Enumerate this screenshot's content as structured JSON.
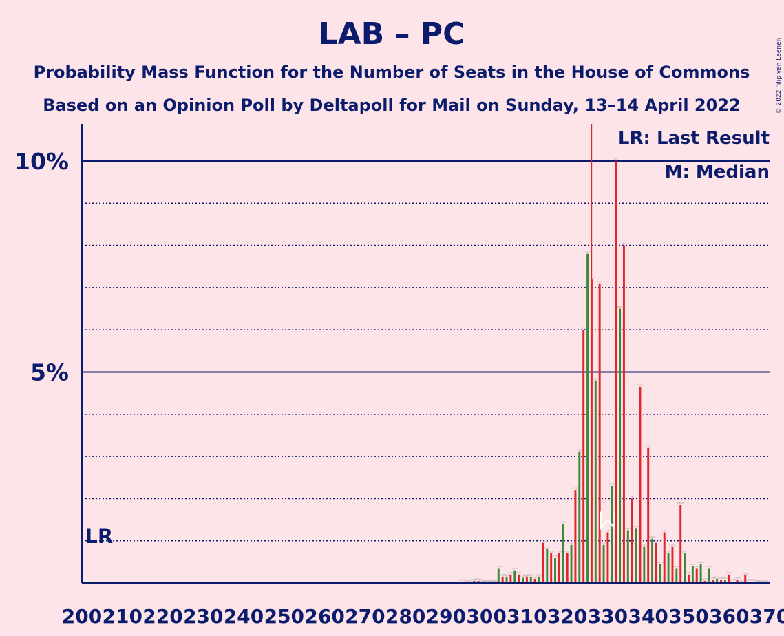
{
  "chart_data": {
    "type": "bar",
    "title": "LAB – PC",
    "subtitle_1": "Probability Mass Function for the Number of Seats in the House of Commons",
    "subtitle_2": "Based on an Opinion Poll by Deltapoll for Mail on Sunday, 13–14 April 2022",
    "ylabel": "",
    "xlabel": "",
    "xlim": [
      200,
      370
    ],
    "ylim": [
      0,
      10.8
    ],
    "y_ticks_major": [
      5,
      10
    ],
    "y_tick_labels": [
      "5%",
      "10%"
    ],
    "y_gridlines_minor": [
      1,
      2,
      3,
      4,
      6,
      7,
      8,
      9
    ],
    "x_ticks": [
      200,
      210,
      220,
      230,
      240,
      250,
      260,
      270,
      280,
      290,
      300,
      310,
      320,
      330,
      340,
      350,
      360,
      370
    ],
    "last_result": 202,
    "last_result_label": "LR",
    "median": 330,
    "median_label": "M",
    "legend": [
      "LR: Last Result",
      "M: Median"
    ],
    "legend_position": "top-right",
    "series_colors": {
      "red": "#e0262b",
      "green": "#3a8a3a",
      "line": "#0c1c6c",
      "threshold": "#e0262b"
    },
    "majority_line": 326,
    "values": [
      {
        "x": 294,
        "v": 0.03
      },
      {
        "x": 295,
        "v": 0.02
      },
      {
        "x": 296,
        "v": 0.02
      },
      {
        "x": 297,
        "v": 0.05
      },
      {
        "x": 298,
        "v": 0.05
      },
      {
        "x": 299,
        "v": 0.01
      },
      {
        "x": 300,
        "v": 0.01
      },
      {
        "x": 301,
        "v": 0.01
      },
      {
        "x": 302,
        "v": 0.01
      },
      {
        "x": 303,
        "v": 0.35
      },
      {
        "x": 304,
        "v": 0.15
      },
      {
        "x": 305,
        "v": 0.15
      },
      {
        "x": 306,
        "v": 0.2
      },
      {
        "x": 307,
        "v": 0.3
      },
      {
        "x": 308,
        "v": 0.2
      },
      {
        "x": 309,
        "v": 0.12
      },
      {
        "x": 310,
        "v": 0.15
      },
      {
        "x": 311,
        "v": 0.15
      },
      {
        "x": 312,
        "v": 0.1
      },
      {
        "x": 313,
        "v": 0.15
      },
      {
        "x": 314,
        "v": 0.95
      },
      {
        "x": 315,
        "v": 0.8
      },
      {
        "x": 316,
        "v": 0.7
      },
      {
        "x": 317,
        "v": 0.6
      },
      {
        "x": 318,
        "v": 0.7
      },
      {
        "x": 319,
        "v": 1.4
      },
      {
        "x": 320,
        "v": 0.7
      },
      {
        "x": 321,
        "v": 0.9
      },
      {
        "x": 322,
        "v": 2.2
      },
      {
        "x": 323,
        "v": 3.1
      },
      {
        "x": 324,
        "v": 6.0
      },
      {
        "x": 325,
        "v": 7.8
      },
      {
        "x": 326,
        "v": 7.2
      },
      {
        "x": 327,
        "v": 4.8
      },
      {
        "x": 328,
        "v": 7.1
      },
      {
        "x": 329,
        "v": 0.9
      },
      {
        "x": 330,
        "v": 1.2
      },
      {
        "x": 331,
        "v": 2.3
      },
      {
        "x": 332,
        "v": 10.0
      },
      {
        "x": 333,
        "v": 6.5
      },
      {
        "x": 334,
        "v": 8.0
      },
      {
        "x": 335,
        "v": 1.25
      },
      {
        "x": 336,
        "v": 2.0
      },
      {
        "x": 337,
        "v": 1.3
      },
      {
        "x": 338,
        "v": 4.65
      },
      {
        "x": 339,
        "v": 0.85
      },
      {
        "x": 340,
        "v": 3.2
      },
      {
        "x": 341,
        "v": 1.05
      },
      {
        "x": 342,
        "v": 0.95
      },
      {
        "x": 343,
        "v": 0.45
      },
      {
        "x": 344,
        "v": 1.2
      },
      {
        "x": 345,
        "v": 0.7
      },
      {
        "x": 346,
        "v": 0.85
      },
      {
        "x": 347,
        "v": 0.35
      },
      {
        "x": 348,
        "v": 1.85
      },
      {
        "x": 349,
        "v": 0.7
      },
      {
        "x": 350,
        "v": 0.2
      },
      {
        "x": 351,
        "v": 0.4
      },
      {
        "x": 352,
        "v": 0.35
      },
      {
        "x": 353,
        "v": 0.45
      },
      {
        "x": 354,
        "v": 0.05
      },
      {
        "x": 355,
        "v": 0.35
      },
      {
        "x": 356,
        "v": 0.08
      },
      {
        "x": 357,
        "v": 0.1
      },
      {
        "x": 358,
        "v": 0.08
      },
      {
        "x": 359,
        "v": 0.08
      },
      {
        "x": 360,
        "v": 0.2
      },
      {
        "x": 361,
        "v": 0.03
      },
      {
        "x": 362,
        "v": 0.08
      },
      {
        "x": 363,
        "v": 0.02
      },
      {
        "x": 364,
        "v": 0.18
      },
      {
        "x": 365,
        "v": 0.03
      },
      {
        "x": 366,
        "v": 0.03
      },
      {
        "x": 367,
        "v": 0.01
      },
      {
        "x": 368,
        "v": 0.02
      },
      {
        "x": 369,
        "v": 0.01
      }
    ]
  },
  "credit": "© 2022 Filip van Laenen"
}
